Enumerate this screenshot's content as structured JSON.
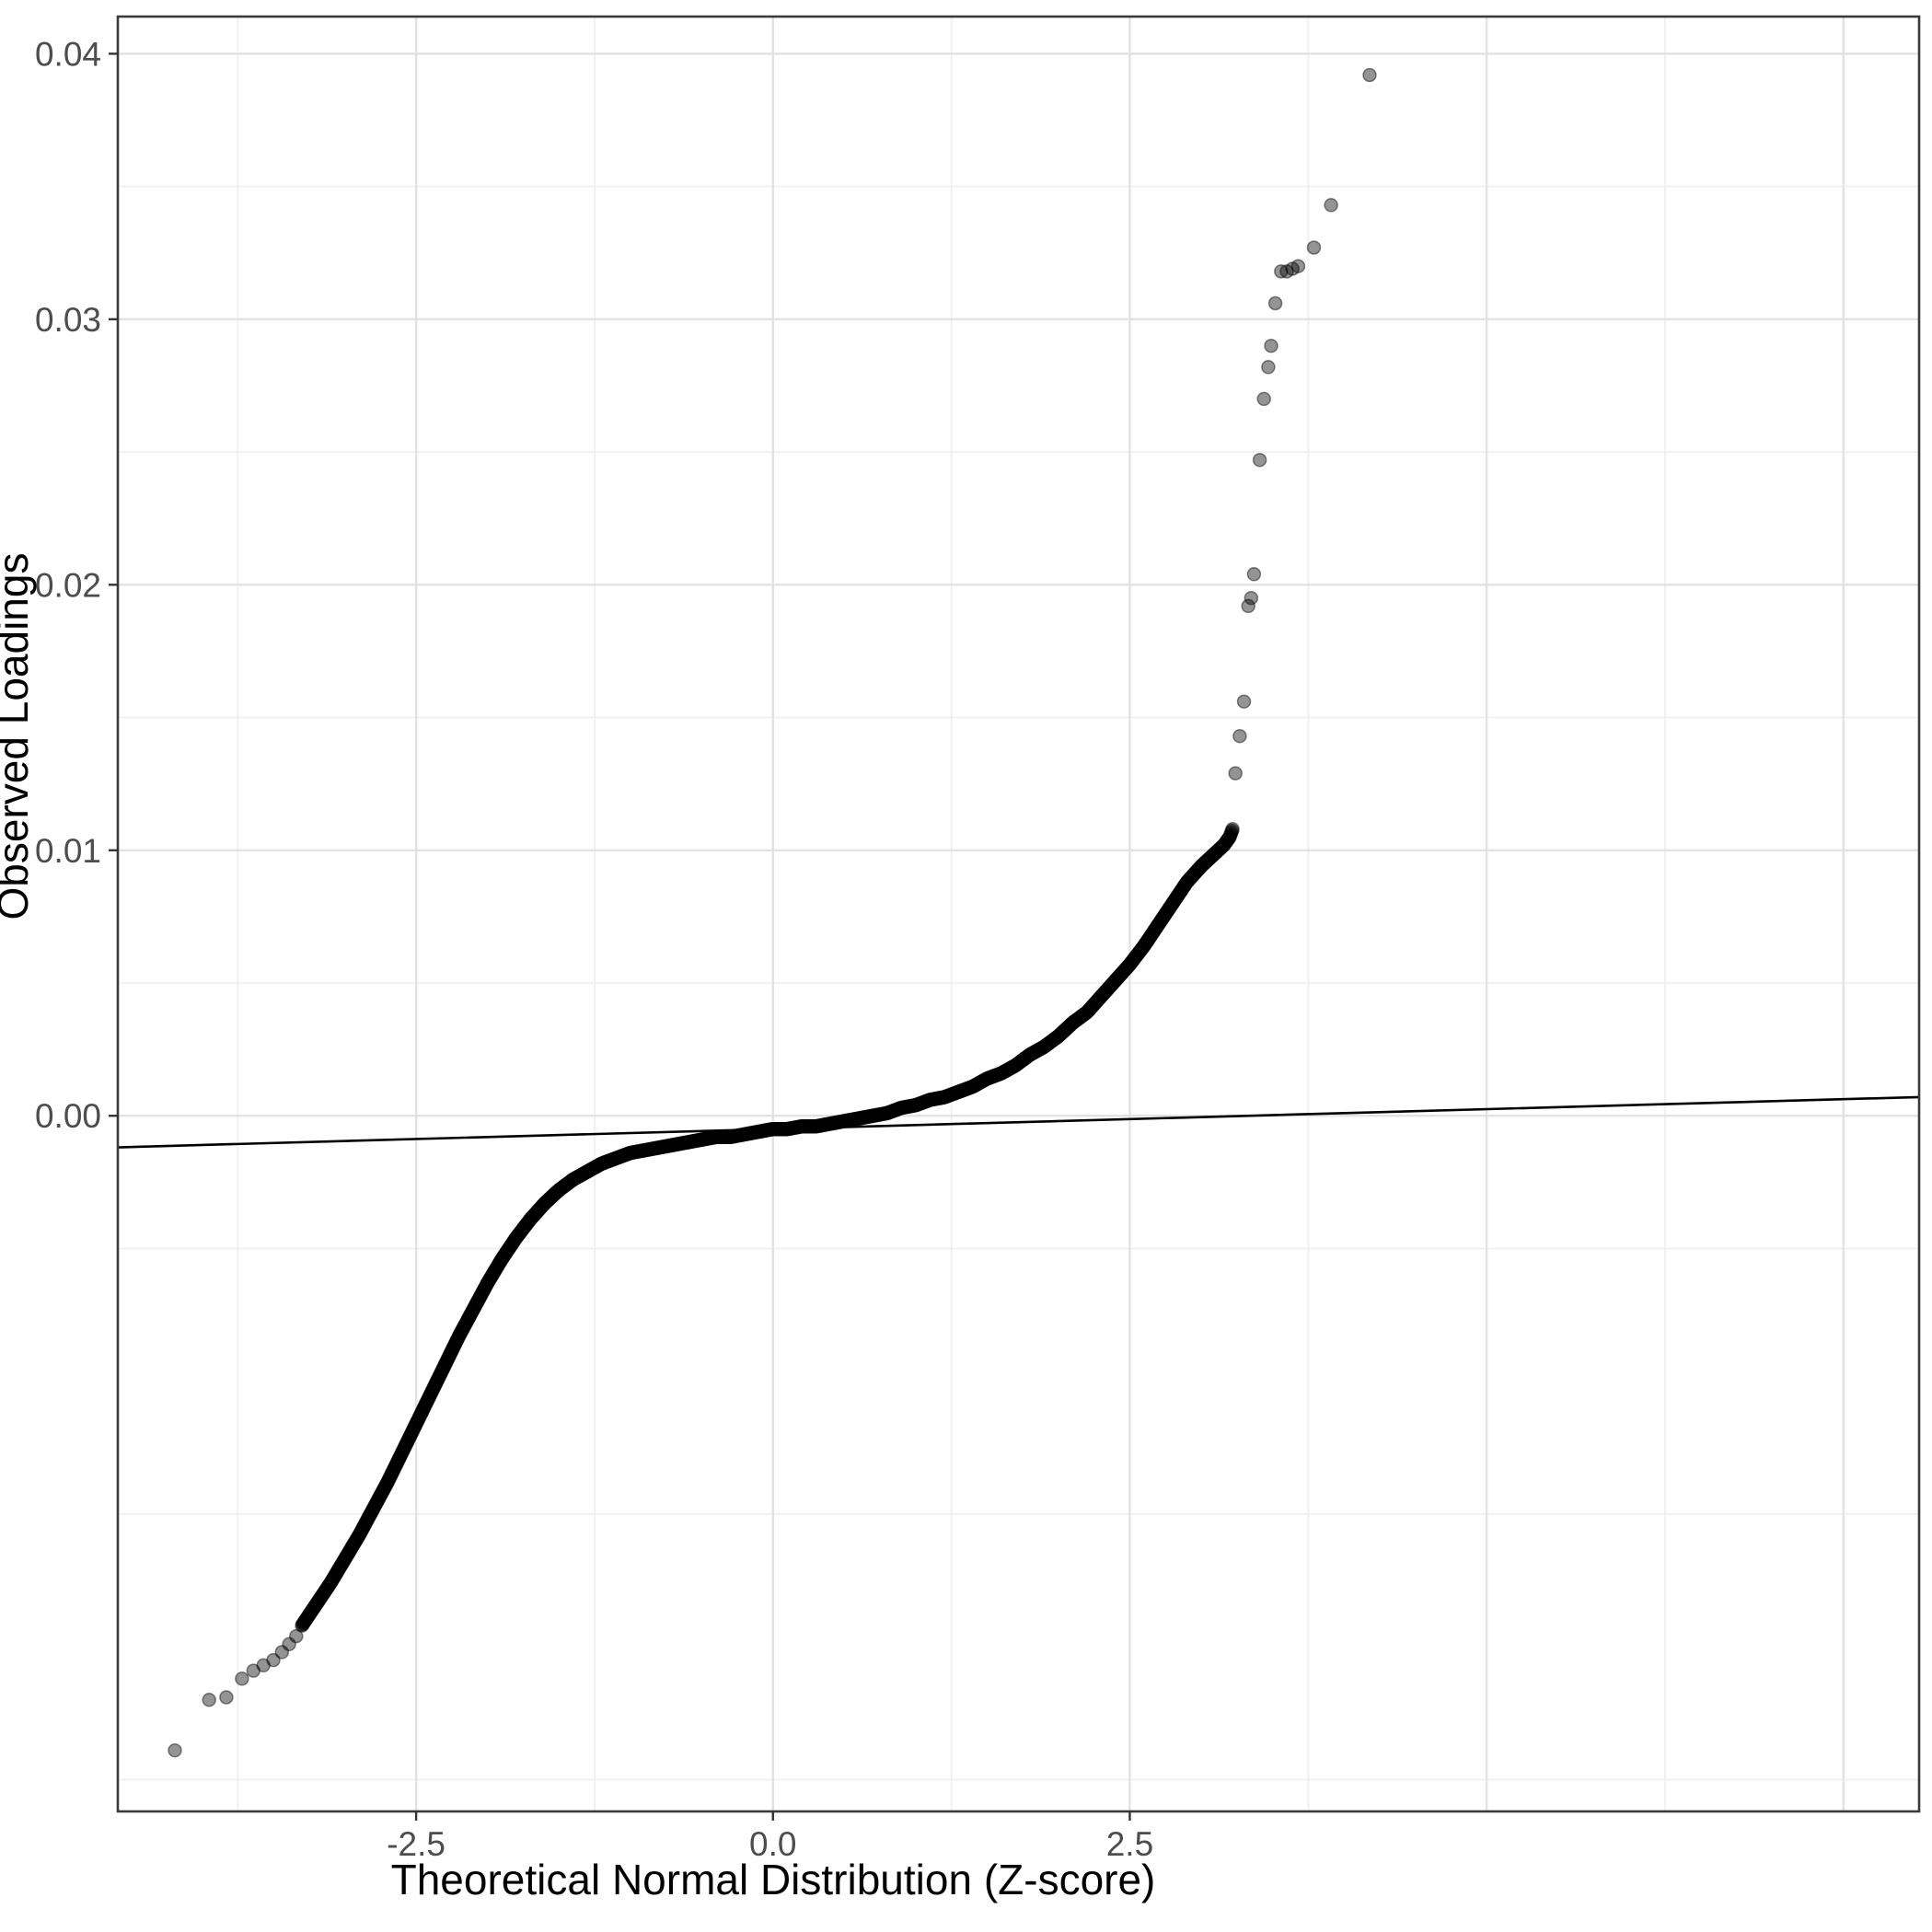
{
  "figure": {
    "background": "#ffffff",
    "panel_background": "#ffffff",
    "panel_border_color": "#3a3a3a",
    "grid_major_color": "#e2e2e2",
    "grid_minor_color": "#f0f0f0",
    "tick_mark_color": "#333333",
    "tick_label_color": "#4d4d4d",
    "axis_title_color": "#000000",
    "point_color": "#000000",
    "point_opacity": 0.42,
    "reference_line_color": "#000000"
  },
  "chart_data": {
    "type": "scatter",
    "subtype": "qq-plot",
    "title": "",
    "xlabel": "Theoretical Normal Distribution (Z-score)",
    "ylabel": "Observed Loadings",
    "x_ticks": [
      -2.5,
      0,
      2.5
    ],
    "x_tick_labels": [
      "-2.5",
      "0.0",
      "2.5"
    ],
    "x_minor_ticks": [
      -3.75,
      -1.25,
      1.25,
      3.75,
      6.25
    ],
    "x_unlabeled_gridlines": [
      5.0,
      7.5
    ],
    "y_ticks": [
      0,
      0.01,
      0.02,
      0.03,
      0.04
    ],
    "y_tick_labels": [
      "0.00",
      "0.01",
      "0.02",
      "0.03",
      "0.04"
    ],
    "y_minor_ticks": [
      -0.025,
      -0.015,
      -0.005,
      0.005,
      0.015,
      0.025,
      0.035
    ],
    "xlim": [
      -4.59,
      8.03
    ],
    "ylim": [
      -0.0262,
      0.0414
    ],
    "grid": true,
    "legend": false,
    "reference_line": {
      "slope": 0.00015,
      "intercept": -0.0005
    },
    "dense_sample_step": 0.004,
    "dense_curve": [
      [
        -3.3,
        -0.0192
      ],
      [
        -3.2,
        -0.0184
      ],
      [
        -3.1,
        -0.0176
      ],
      [
        -3.0,
        -0.0167
      ],
      [
        -2.9,
        -0.0158
      ],
      [
        -2.8,
        -0.0148
      ],
      [
        -2.7,
        -0.0138
      ],
      [
        -2.6,
        -0.0127
      ],
      [
        -2.5,
        -0.0116
      ],
      [
        -2.4,
        -0.0105
      ],
      [
        -2.3,
        -0.0094
      ],
      [
        -2.2,
        -0.0083
      ],
      [
        -2.1,
        -0.0073
      ],
      [
        -2.0,
        -0.0063
      ],
      [
        -1.9,
        -0.0054
      ],
      [
        -1.8,
        -0.0046
      ],
      [
        -1.7,
        -0.0039
      ],
      [
        -1.6,
        -0.0033
      ],
      [
        -1.5,
        -0.0028
      ],
      [
        -1.4,
        -0.0024
      ],
      [
        -1.3,
        -0.0021
      ],
      [
        -1.2,
        -0.0018
      ],
      [
        -1.1,
        -0.0016
      ],
      [
        -1.0,
        -0.0014
      ],
      [
        -0.9,
        -0.0013
      ],
      [
        -0.8,
        -0.0012
      ],
      [
        -0.7,
        -0.0011
      ],
      [
        -0.6,
        -0.001
      ],
      [
        -0.5,
        -0.0009
      ],
      [
        -0.4,
        -0.0008
      ],
      [
        -0.3,
        -0.0008
      ],
      [
        -0.2,
        -0.0007
      ],
      [
        -0.1,
        -0.0006
      ],
      [
        0.0,
        -0.0005
      ],
      [
        0.1,
        -0.0005
      ],
      [
        0.2,
        -0.0004
      ],
      [
        0.3,
        -0.0004
      ],
      [
        0.4,
        -0.0003
      ],
      [
        0.5,
        -0.0002
      ],
      [
        0.6,
        -0.0001
      ],
      [
        0.7,
        0.0
      ],
      [
        0.8,
        0.0001
      ],
      [
        0.9,
        0.0003
      ],
      [
        1.0,
        0.0004
      ],
      [
        1.1,
        0.0006
      ],
      [
        1.2,
        0.0007
      ],
      [
        1.3,
        0.0009
      ],
      [
        1.4,
        0.0011
      ],
      [
        1.5,
        0.0014
      ],
      [
        1.6,
        0.0016
      ],
      [
        1.7,
        0.0019
      ],
      [
        1.8,
        0.0023
      ],
      [
        1.9,
        0.0026
      ],
      [
        2.0,
        0.003
      ],
      [
        2.1,
        0.0035
      ],
      [
        2.2,
        0.0039
      ],
      [
        2.3,
        0.0045
      ],
      [
        2.4,
        0.0051
      ],
      [
        2.5,
        0.0057
      ],
      [
        2.6,
        0.0064
      ],
      [
        2.7,
        0.0072
      ],
      [
        2.8,
        0.008
      ],
      [
        2.9,
        0.0088
      ],
      [
        3.0,
        0.0094
      ],
      [
        3.1,
        0.0099
      ],
      [
        3.16,
        0.0102
      ],
      [
        3.2,
        0.0105
      ],
      [
        3.22,
        0.0108
      ]
    ],
    "left_outliers": [
      [
        -4.19,
        -0.0239
      ],
      [
        -3.95,
        -0.022
      ],
      [
        -3.83,
        -0.0219
      ],
      [
        -3.72,
        -0.0212
      ],
      [
        -3.64,
        -0.0209
      ],
      [
        -3.57,
        -0.0207
      ],
      [
        -3.5,
        -0.0205
      ],
      [
        -3.44,
        -0.0202
      ],
      [
        -3.39,
        -0.0199
      ],
      [
        -3.34,
        -0.0196
      ]
    ],
    "right_outliers": [
      [
        3.24,
        0.0129
      ],
      [
        3.27,
        0.0143
      ],
      [
        3.3,
        0.0156
      ],
      [
        3.33,
        0.0192
      ],
      [
        3.35,
        0.0195
      ],
      [
        3.37,
        0.0204
      ],
      [
        3.41,
        0.0247
      ],
      [
        3.44,
        0.027
      ],
      [
        3.47,
        0.0282
      ],
      [
        3.49,
        0.029
      ],
      [
        3.52,
        0.0306
      ],
      [
        3.56,
        0.0318
      ],
      [
        3.6,
        0.0318
      ],
      [
        3.64,
        0.0319
      ],
      [
        3.68,
        0.032
      ],
      [
        3.79,
        0.0327
      ],
      [
        3.91,
        0.0343
      ],
      [
        4.18,
        0.0392
      ]
    ]
  }
}
